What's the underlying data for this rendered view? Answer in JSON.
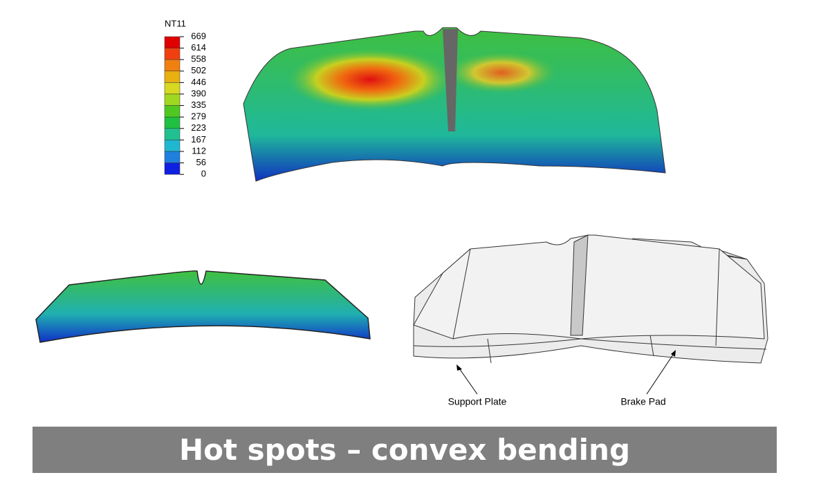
{
  "legend": {
    "title": "NT11",
    "labels": [
      669,
      614,
      558,
      502,
      446,
      390,
      335,
      279,
      223,
      167,
      112,
      56,
      0
    ]
  },
  "annotations": {
    "support_plate": "Support Plate",
    "brake_pad": "Brake Pad"
  },
  "caption": "Hot spots – convex bending"
}
